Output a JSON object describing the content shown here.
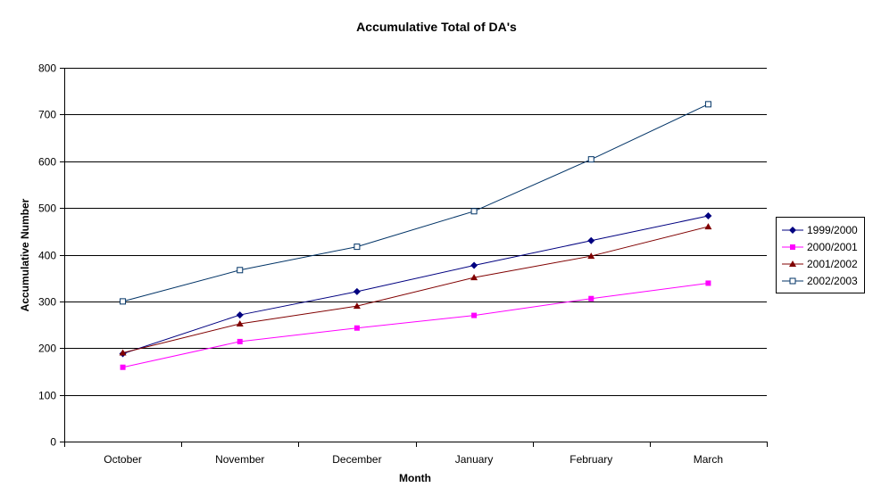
{
  "chart_data": {
    "type": "line",
    "title": "Accumulative Total of DA's",
    "xlabel": "Month",
    "ylabel": "Accumulative Number",
    "categories": [
      "October",
      "November",
      "December",
      "January",
      "February",
      "March"
    ],
    "ylim": [
      0,
      800
    ],
    "yticks": [
      0,
      100,
      200,
      300,
      400,
      500,
      600,
      700,
      800
    ],
    "grid": true,
    "legend_position": "right",
    "series": [
      {
        "name": "1999/2000",
        "values": [
          188,
          271,
          321,
          377,
          430,
          483
        ],
        "color": "#000080",
        "marker": "diamond"
      },
      {
        "name": "2000/2001",
        "values": [
          159,
          214,
          243,
          270,
          306,
          339
        ],
        "color": "#ff00ff",
        "marker": "square"
      },
      {
        "name": "2001/2002",
        "values": [
          190,
          252,
          290,
          351,
          397,
          460
        ],
        "color": "#800000",
        "marker": "triangle"
      },
      {
        "name": "2002/2003",
        "values": [
          300,
          367,
          417,
          493,
          604,
          722
        ],
        "color": "#003366",
        "marker": "open-square"
      }
    ]
  }
}
